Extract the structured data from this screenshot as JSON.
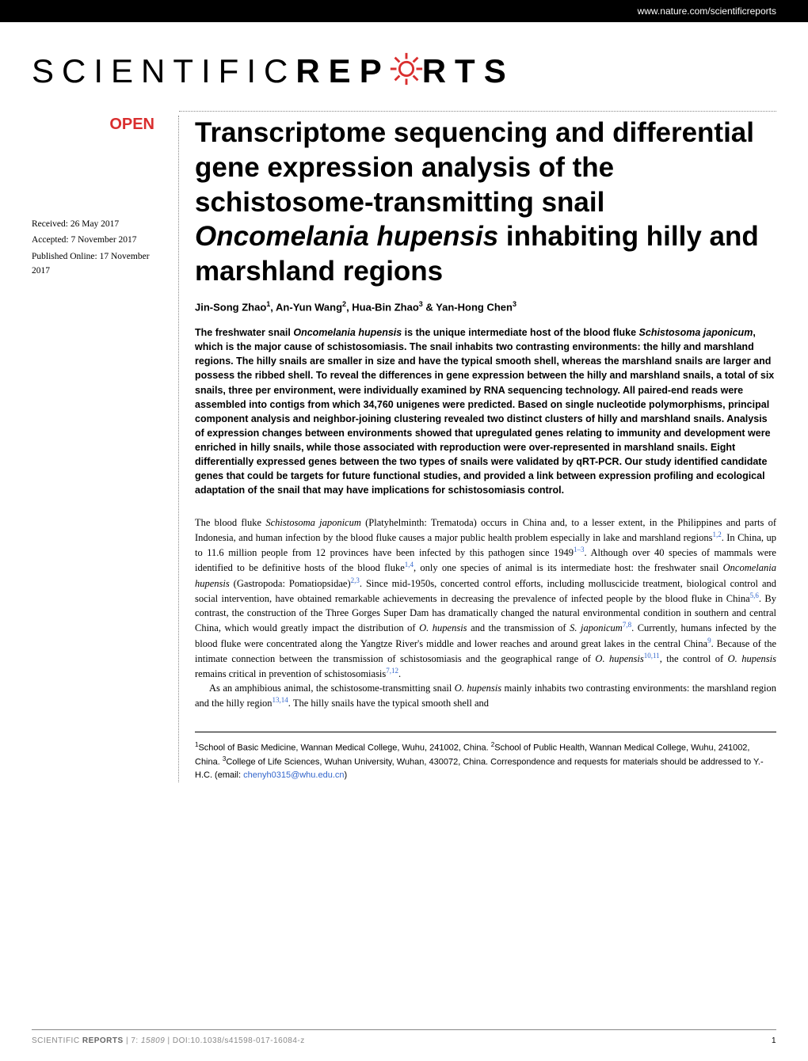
{
  "header": {
    "url": "www.nature.com/scientificreports"
  },
  "logo": {
    "part1": "SCIENTIFIC ",
    "part2": "REP",
    "part3": "RTS"
  },
  "open_badge": "OPEN",
  "dates": {
    "received": "Received: 26 May 2017",
    "accepted": "Accepted: 7 November 2017",
    "published": "Published Online: 17 November 2017"
  },
  "title_html": "Transcriptome sequencing and differential gene expression analysis of the schistosome-transmitting snail <em>Oncomelania hupensis</em> inhabiting hilly and marshland regions",
  "authors_html": "Jin-Song Zhao<sup>1</sup>, An-Yun Wang<sup>2</sup>, Hua-Bin Zhao<sup>3</sup> & Yan-Hong Chen<sup>3</sup>",
  "abstract_html": "The freshwater snail <em>Oncomelania hupensis</em> is the unique intermediate host of the blood fluke <em>Schistosoma japonicum</em>, which is the major cause of schistosomiasis. The snail inhabits two contrasting environments: the hilly and marshland regions. The hilly snails are smaller in size and have the typical smooth shell, whereas the marshland snails are larger and possess the ribbed shell. To reveal the differences in gene expression between the hilly and marshland snails, a total of six snails, three per environment, were individually examined by RNA sequencing technology. All paired-end reads were assembled into contigs from which 34,760 unigenes were predicted. Based on single nucleotide polymorphisms, principal component analysis and neighbor-joining clustering revealed two distinct clusters of hilly and marshland snails. Analysis of expression changes between environments showed that upregulated genes relating to immunity and development were enriched in hilly snails, while those associated with reproduction were over-represented in marshland snails. Eight differentially expressed genes between the two types of snails were validated by qRT-PCR. Our study identified candidate genes that could be targets for future functional studies, and provided a link between expression profiling and ecological adaptation of the snail that may have implications for schistosomiasis control.",
  "body": {
    "p1_html": "The blood fluke <em>Schistosoma japonicum</em> (Platyhelminth: Trematoda) occurs in China and, to a lesser extent, in the Philippines and parts of Indonesia, and human infection by the blood fluke causes a major public health problem especially in lake and marshland regions<span class=\"cite\">1,2</span>. In China, up to 11.6 million people from 12 provinces have been infected by this pathogen since 1949<span class=\"cite\">1–3</span>. Although over 40 species of mammals were identified to be definitive hosts of the blood fluke<span class=\"cite\">1,4</span>, only one species of animal is its intermediate host: the freshwater snail <em>Oncomelania hupensis</em> (Gastropoda: Pomatiopsidae)<span class=\"cite\">2,3</span>. Since mid-1950s, concerted control efforts, including molluscicide treatment, biological control and social intervention, have obtained remarkable achievements in decreasing the prevalence of infected people by the blood fluke in China<span class=\"cite\">5,6</span>. By contrast, the construction of the Three Gorges Super Dam has dramatically changed the natural environmental condition in southern and central China, which would greatly impact the distribution of <em>O. hupensis</em> and the transmission of <em>S. japonicum</em><span class=\"cite\">7,8</span>. Currently, humans infected by the blood fluke were concentrated along the Yangtze River's middle and lower reaches and around great lakes in the central China<span class=\"cite\">9</span>. Because of the intimate connection between the transmission of schistosomiasis and the geographical range of <em>O. hupensis</em><span class=\"cite\">10,11</span>, the control of <em>O. hupensis</em> remains critical in prevention of schistosomiasis<span class=\"cite\">7,12</span>.",
    "p2_html": "As an amphibious animal, the schistosome-transmitting snail <em>O. hupensis</em> mainly inhabits two contrasting environments: the marshland region and the hilly region<span class=\"cite\">13,14</span>. The hilly snails have the typical smooth shell and"
  },
  "affiliations_html": "<sup>1</sup>School of Basic Medicine, Wannan Medical College, Wuhu, 241002, China. <sup>2</sup>School of Public Health, Wannan Medical College, Wuhu, 241002, China. <sup>3</sup>College of Life Sciences, Wuhan University, Wuhan, 430072, China. Correspondence and requests for materials should be addressed to Y.-H.C. (email: <span class=\"email\">chenyh0315@whu.edu.cn</span>)",
  "footer": {
    "citation_html": "SCIENTIFIC <b>REPORTS</b> | 7: <em>15809</em> | DOI:10.1038/s41598-017-16084-z",
    "page": "1"
  },
  "colors": {
    "brand_red": "#d92e2e",
    "link_blue": "#3366cc",
    "black": "#000000",
    "white": "#ffffff",
    "gray": "#888888"
  },
  "typography": {
    "title_fontsize": 35,
    "authors_fontsize": 13,
    "abstract_fontsize": 12.5,
    "body_fontsize": 12.5,
    "footer_fontsize": 10
  }
}
